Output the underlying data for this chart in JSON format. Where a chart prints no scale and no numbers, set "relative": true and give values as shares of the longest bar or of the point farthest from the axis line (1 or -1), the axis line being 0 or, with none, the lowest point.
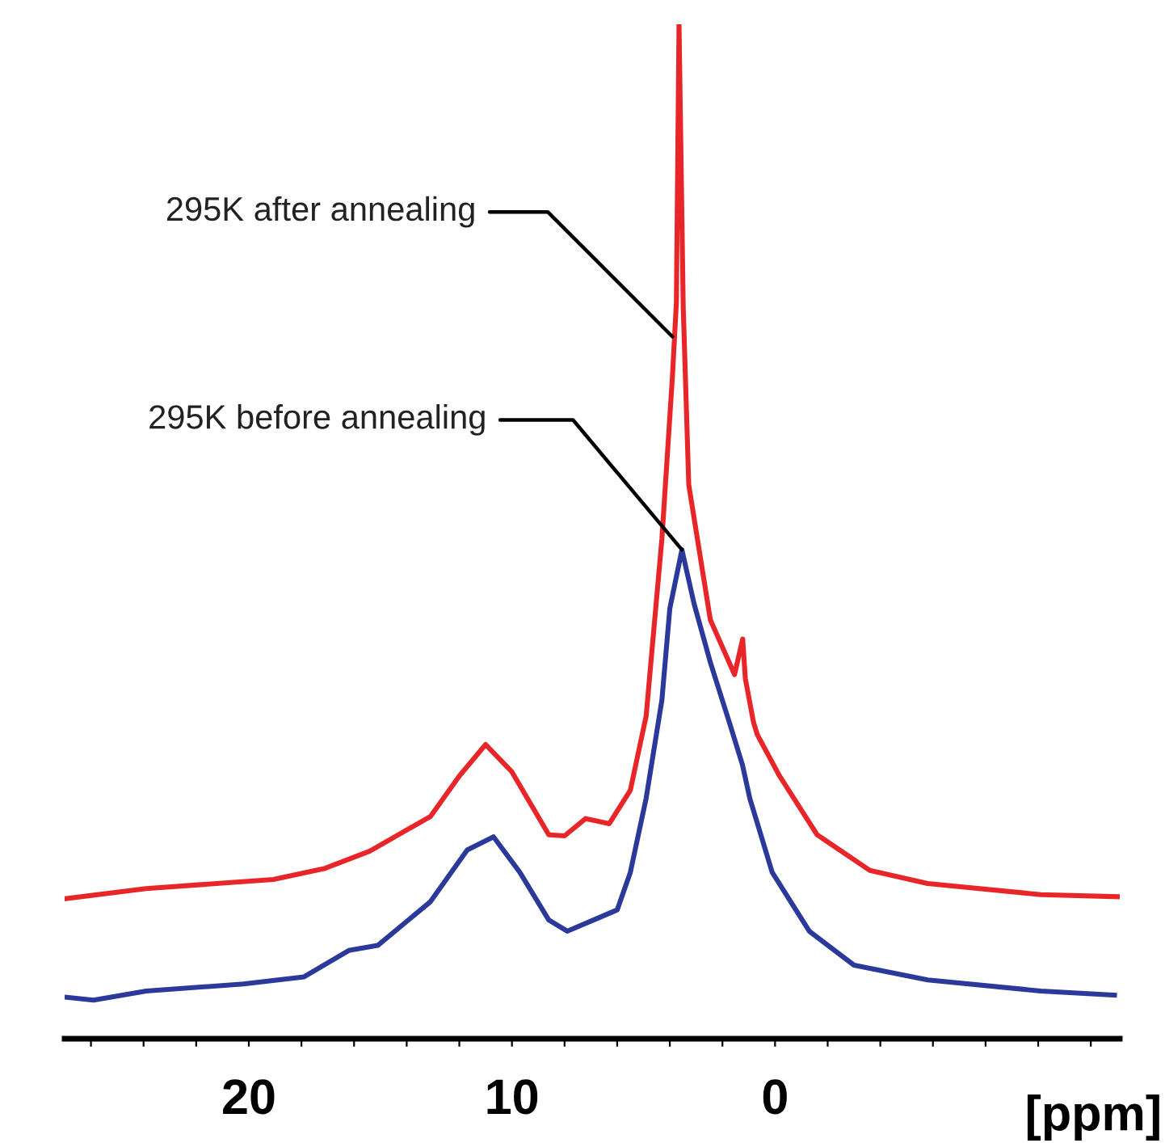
{
  "chart_data": {
    "type": "line",
    "relative": true,
    "xlabel": "[ppm]",
    "xlim": [
      27.0,
      -13.1
    ],
    "xticks": [
      {
        "value": 26,
        "label": null
      },
      {
        "value": 24,
        "label": null
      },
      {
        "value": 22,
        "label": null
      },
      20,
      {
        "value": 18,
        "label": null
      },
      {
        "value": 16,
        "label": null
      },
      {
        "value": 14,
        "label": null
      },
      {
        "value": 12,
        "label": null
      },
      10,
      {
        "value": 8,
        "label": null
      },
      {
        "value": 6,
        "label": null
      },
      {
        "value": 4,
        "label": null
      },
      {
        "value": 2,
        "label": null
      },
      0,
      {
        "value": -2,
        "label": null
      },
      {
        "value": -4,
        "label": null
      },
      {
        "value": -6,
        "label": null
      },
      {
        "value": -8,
        "label": null
      },
      {
        "value": -10,
        "label": null
      },
      {
        "value": -12,
        "label": null
      }
    ],
    "grid": false,
    "series": [
      {
        "color": "#e8262a",
        "x": [
          27.0,
          23.9,
          19.07,
          17.1,
          15.4,
          13.1,
          12.0,
          11.0,
          10.0,
          8.6,
          8.0,
          7.2,
          6.3,
          5.5,
          4.9,
          4.3,
          3.9,
          3.75,
          3.65,
          3.49,
          3.28,
          2.46,
          1.54,
          1.23,
          1.13,
          0.82,
          0.68,
          -0.17,
          -1.6,
          -3.6,
          -5.8,
          -10.1,
          -13.05
        ],
        "values": [
          0.138,
          0.148,
          0.157,
          0.168,
          0.185,
          0.219,
          0.259,
          0.29,
          0.263,
          0.201,
          0.2,
          0.217,
          0.212,
          0.245,
          0.318,
          0.493,
          0.653,
          0.726,
          1.0,
          0.721,
          0.546,
          0.413,
          0.359,
          0.394,
          0.355,
          0.312,
          0.3,
          0.259,
          0.201,
          0.166,
          0.153,
          0.142,
          0.14
        ]
      },
      {
        "color": "#2b3a9a",
        "x": [
          27.0,
          25.9,
          23.9,
          20.2,
          17.9,
          16.2,
          15.1,
          13.1,
          11.7,
          10.7,
          9.7,
          8.6,
          7.9,
          6.9,
          6.0,
          5.5,
          4.9,
          4.3,
          4.0,
          3.54,
          3.08,
          2.46,
          1.74,
          1.24,
          0.96,
          0.11,
          -1.3,
          -3.0,
          -5.8,
          -10.1,
          -12.9
        ],
        "values": [
          0.041,
          0.038,
          0.047,
          0.054,
          0.061,
          0.087,
          0.092,
          0.135,
          0.186,
          0.199,
          0.164,
          0.117,
          0.106,
          0.117,
          0.127,
          0.164,
          0.237,
          0.334,
          0.424,
          0.482,
          0.429,
          0.371,
          0.312,
          0.27,
          0.237,
          0.164,
          0.106,
          0.0725,
          0.058,
          0.047,
          0.043
        ]
      }
    ],
    "annotations": [
      {
        "text": "295K after annealing",
        "x": 3.9,
        "y": 0.692
      },
      {
        "text": "295K before annealing",
        "x": 3.54,
        "y": 0.482
      }
    ]
  }
}
